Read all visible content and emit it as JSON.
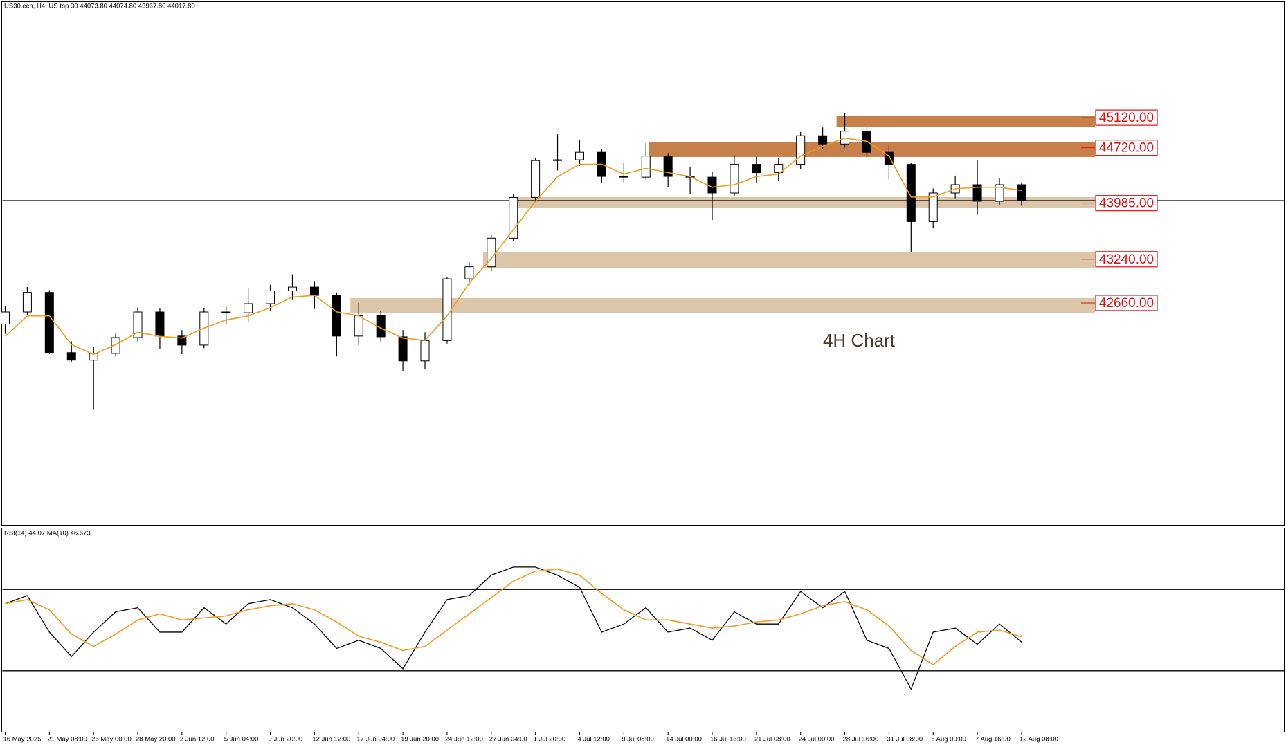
{
  "chart_data": [
    {
      "type": "candlestick",
      "title": "US30.ecn, H4:  US top 30  44073.80 44074.80 43967.80 44017.80",
      "x": [
        0,
        8,
        16,
        24,
        32,
        40,
        48,
        56,
        64,
        72,
        80,
        88,
        96,
        104,
        112,
        120,
        128,
        136,
        144,
        152,
        160,
        168,
        176,
        184,
        192,
        200,
        208,
        216,
        224,
        232,
        240,
        248,
        256,
        264,
        272,
        280,
        288,
        296,
        304,
        312,
        320,
        328,
        336,
        344,
        352,
        360,
        368
      ],
      "open": [
        42380,
        42540,
        42800,
        42000,
        41900,
        41990,
        42200,
        42540,
        42220,
        42100,
        42540,
        42530,
        42650,
        42820,
        42870,
        42760,
        42220,
        42490,
        42210,
        41890,
        42160,
        42980,
        43140,
        43520,
        44060,
        44550,
        44560,
        44660,
        44340,
        44330,
        44610,
        44340,
        44330,
        44120,
        44500,
        44390,
        44500,
        44880,
        44770,
        44940,
        44660,
        44500,
        43740,
        44120,
        44230,
        44010,
        44230
      ],
      "high": [
        42620,
        42870,
        42830,
        42150,
        42080,
        42260,
        42600,
        42590,
        42300,
        42590,
        42620,
        42850,
        42900,
        43040,
        42950,
        42800,
        42660,
        42550,
        42300,
        42270,
        43000,
        43200,
        43560,
        44100,
        44580,
        44900,
        44820,
        44700,
        44520,
        44780,
        44650,
        44470,
        44400,
        44620,
        44600,
        44580,
        44930,
        44990,
        45180,
        45000,
        44750,
        44520,
        44180,
        44350,
        44560,
        44320,
        44260
      ],
      "low": [
        42250,
        42480,
        41980,
        41880,
        41240,
        41950,
        42150,
        42050,
        41980,
        42060,
        42380,
        42400,
        42560,
        42700,
        42580,
        41950,
        42100,
        42150,
        41760,
        41780,
        42120,
        42900,
        43080,
        43480,
        44000,
        44420,
        44480,
        44250,
        44260,
        44300,
        44200,
        44100,
        43760,
        44080,
        44260,
        44280,
        44440,
        44700,
        44720,
        44580,
        44300,
        43330,
        43650,
        44050,
        43830,
        43960,
        43950
      ],
      "close": [
        42540,
        42800,
        42000,
        41900,
        41990,
        42200,
        42540,
        42220,
        42100,
        42540,
        42530,
        42650,
        42820,
        42870,
        42760,
        42220,
        42490,
        42210,
        41890,
        42160,
        42980,
        43140,
        43520,
        44060,
        44550,
        44560,
        44660,
        44340,
        44330,
        44610,
        44340,
        44330,
        44120,
        44500,
        44390,
        44500,
        44880,
        44770,
        44940,
        44660,
        44500,
        43740,
        44120,
        44230,
        44010,
        44230,
        44020
      ],
      "ma": {
        "color": "#f29a1c",
        "values": [
          42216,
          42488,
          42488,
          42107,
          41977,
          42107,
          42270,
          42216,
          42194,
          42325,
          42434,
          42488,
          42597,
          42738,
          42760,
          42542,
          42488,
          42325,
          42194,
          42162,
          42488,
          42923,
          43250,
          43631,
          44011,
          44338,
          44501,
          44501,
          44371,
          44447,
          44392,
          44338,
          44196,
          44229,
          44338,
          44371,
          44610,
          44740,
          44849,
          44806,
          44610,
          44066,
          44066,
          44175,
          44196,
          44196,
          44153
        ]
      },
      "up_color": "#ffffff",
      "down_color": "#000000",
      "xlim": [
        -1,
        463
      ],
      "ylim": [
        39711,
        46655
      ],
      "levels": [
        {
          "value": 45120,
          "label": "45120.00",
          "zone": [
            45000,
            45140
          ],
          "start": 301,
          "color": "#c8804a"
        },
        {
          "value": 44720,
          "label": "44720.00",
          "zone": [
            44598,
            44794
          ],
          "start": 233,
          "color": "#c8804a"
        },
        {
          "value": 43985,
          "label": "43985.00",
          "zone": [
            43924,
            44065
          ],
          "start": 185,
          "color": "#dcc6aa"
        },
        {
          "value": 43240,
          "label": "43240.00",
          "zone": [
            43118,
            43335
          ],
          "start": 173,
          "color": "#dcc6aa"
        },
        {
          "value": 42660,
          "label": "42660.00",
          "zone": [
            42530,
            42725
          ],
          "start": 125,
          "color": "#dcc6aa"
        }
      ],
      "annotation": "4H Chart"
    },
    {
      "type": "line",
      "title": "RSI(14) 44.07 MA(10) 46.673",
      "x": [
        0,
        8,
        16,
        24,
        32,
        40,
        48,
        56,
        64,
        72,
        80,
        88,
        96,
        104,
        112,
        120,
        128,
        136,
        144,
        152,
        160,
        168,
        176,
        184,
        192,
        200,
        208,
        216,
        224,
        232,
        240,
        248,
        256,
        264,
        272,
        280,
        288,
        296,
        304,
        312,
        320,
        328,
        336,
        344,
        352,
        360,
        368
      ],
      "series": [
        {
          "color": "#000000",
          "values": [
            63,
            67,
            49,
            37,
            49,
            59,
            61,
            49,
            49,
            61,
            53,
            63,
            65,
            61,
            53,
            41,
            45,
            41,
            31,
            49,
            65,
            67,
            77,
            81,
            81,
            77,
            71,
            49,
            53,
            61,
            49,
            51,
            45,
            59,
            53,
            53,
            69,
            61,
            69,
            45,
            41,
            21,
            49,
            51,
            43,
            53,
            44.07
          ]
        },
        {
          "color": "#f29a1c",
          "values": [
            63,
            65,
            60,
            48,
            42,
            48,
            55,
            58,
            55,
            56,
            57,
            60,
            62,
            63,
            60,
            54,
            47,
            44,
            40,
            42,
            50,
            58,
            66,
            74,
            79,
            80,
            77,
            68,
            60,
            55,
            55,
            53,
            51,
            52,
            54,
            55,
            58,
            62,
            64,
            60,
            52,
            40,
            33,
            42,
            49,
            50,
            46.673
          ]
        }
      ],
      "xlim": [
        -1,
        463
      ],
      "ylim": [
        0,
        100
      ],
      "levels": [
        70,
        30
      ],
      "xticks": [
        {
          "value": 0,
          "label": "16 May 2025"
        },
        {
          "value": 16,
          "label": "21 May 08:00"
        },
        {
          "value": 32,
          "label": "26 May 00:00"
        },
        {
          "value": 48,
          "label": "28 May 20:00"
        },
        {
          "value": 64,
          "label": "2 Jun 12:00"
        },
        {
          "value": 80,
          "label": "5 Jun 04:00"
        },
        {
          "value": 96,
          "label": "9 Jun 20:00"
        },
        {
          "value": 112,
          "label": "12 Jun 12:00"
        },
        {
          "value": 128,
          "label": "17 Jun 04:00"
        },
        {
          "value": 144,
          "label": "19 Jun 20:00"
        },
        {
          "value": 160,
          "label": "24 Jun 12:00"
        },
        {
          "value": 176,
          "label": "27 Jun 04:00"
        },
        {
          "value": 192,
          "label": "1 Jul 20:00"
        },
        {
          "value": 208,
          "label": "4 Jul 12:00"
        },
        {
          "value": 224,
          "label": "9 Jul 08:00"
        },
        {
          "value": 240,
          "label": "14 Jul 00:00"
        },
        {
          "value": 256,
          "label": "16 Jul 16:00"
        },
        {
          "value": 272,
          "label": "21 Jul 08:00"
        },
        {
          "value": 288,
          "label": "24 Jul 00:00"
        },
        {
          "value": 304,
          "label": "28 Jul 16:00"
        },
        {
          "value": 320,
          "label": "31 Jul 08:00"
        },
        {
          "value": 336,
          "label": "5 Aug 00:00"
        },
        {
          "value": 352,
          "label": "7 Aug 16:00"
        },
        {
          "value": 368,
          "label": "12 Aug 08:00"
        }
      ]
    }
  ]
}
